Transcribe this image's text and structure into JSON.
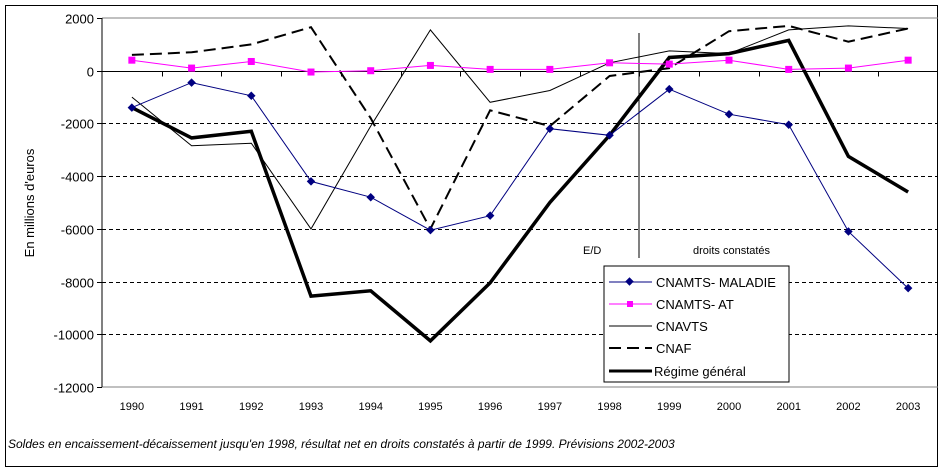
{
  "chart_data": {
    "type": "line",
    "title": "",
    "xlabel": "",
    "ylabel": "En millions d'euros",
    "ylim": [
      -12000,
      2000
    ],
    "yticks": [
      2000,
      0,
      -2000,
      -4000,
      -6000,
      -8000,
      -10000,
      -12000
    ],
    "ytick_labels": [
      "2000",
      "0",
      "-2000",
      "-4000",
      "-6000",
      "-8000",
      "-10000",
      "-12000"
    ],
    "grid": "horizontal dashed",
    "categories": [
      "1990",
      "1991",
      "1992",
      "1993",
      "1994",
      "1995",
      "1996",
      "1997",
      "1998",
      "1999",
      "2000",
      "2001",
      "2002",
      "2003"
    ],
    "series": [
      {
        "name": "CNAMTS- MALADIE",
        "color": "#000080",
        "style": "thin-diamond",
        "values": [
          -1400,
          -450,
          -950,
          -4200,
          -4800,
          -6050,
          -5500,
          -2200,
          -2450,
          -700,
          -1650,
          -2050,
          -6100,
          -8250
        ]
      },
      {
        "name": "CNAMTS- AT",
        "color": "#FF00FF",
        "style": "thin-square",
        "values": [
          400,
          100,
          350,
          -50,
          0,
          200,
          50,
          50,
          300,
          250,
          400,
          50,
          100,
          400
        ]
      },
      {
        "name": "CNAVTS",
        "color": "#000000",
        "style": "thin",
        "values": [
          -1000,
          -2850,
          -2750,
          -6000,
          -2100,
          1550,
          -1200,
          -750,
          300,
          750,
          650,
          1550,
          1700,
          1600
        ]
      },
      {
        "name": "CNAF",
        "color": "#000000",
        "style": "dashed",
        "values": [
          600,
          700,
          1000,
          1650,
          -1800,
          -6000,
          -1500,
          -2100,
          -200,
          100,
          1500,
          1700,
          1100,
          1600
        ]
      },
      {
        "name": "Régime général",
        "color": "#000000",
        "style": "thick",
        "values": [
          -1400,
          -2550,
          -2300,
          -8550,
          -8350,
          -10250,
          -8050,
          -5000,
          -2450,
          500,
          650,
          1150,
          -3250,
          -4600
        ]
      }
    ],
    "legend": "bottom-right, inside plot",
    "annotations": {
      "divider_between": [
        "1998",
        "1999"
      ],
      "left_label": "E/D",
      "right_label": "droits constatés"
    }
  },
  "caption": "Soldes en encaissement-décaissement jusqu'en 1998, résultat net en droits constatés à partir de 1999. Prévisions 2002-2003"
}
